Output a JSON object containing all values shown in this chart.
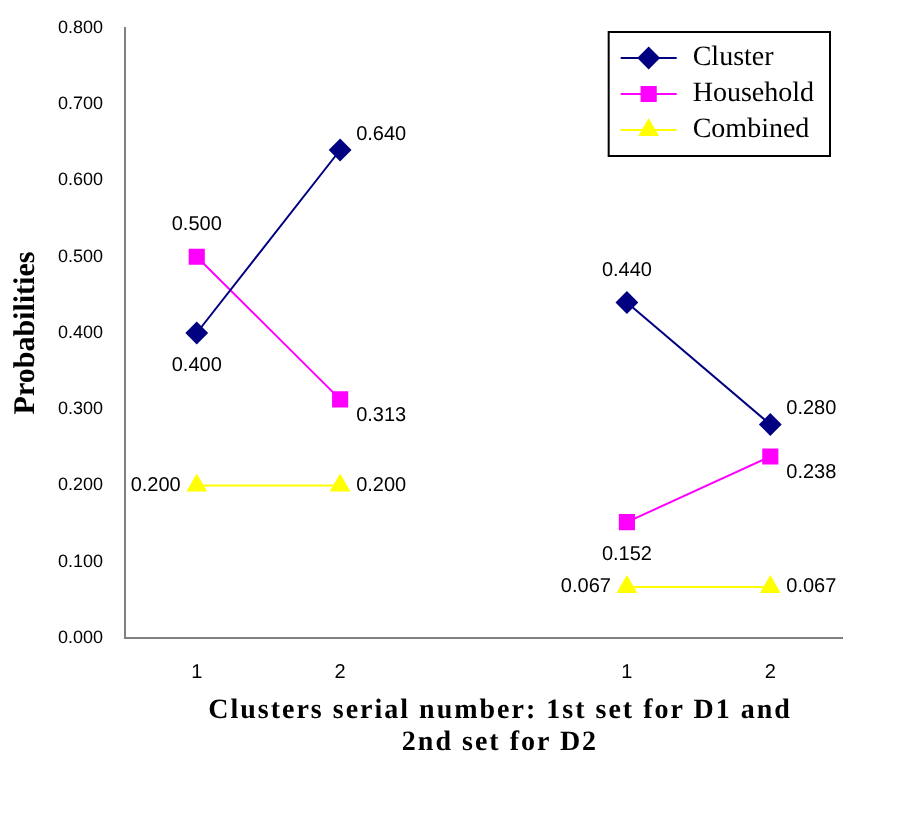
{
  "chart_data": {
    "type": "line",
    "ylabel": "Probabilities",
    "xlabel": "Clusters serial number: 1st set for D1 and 2nd set for D2",
    "categories": [
      "1",
      "2",
      null,
      "1",
      "2"
    ],
    "series": [
      {
        "name": "Cluster",
        "color": "#000080",
        "marker": "diamond",
        "values": [
          0.4,
          0.64,
          null,
          0.44,
          0.28
        ],
        "value_labels": [
          "0.400",
          "0.640",
          null,
          "0.440",
          "0.280"
        ]
      },
      {
        "name": "Household",
        "color": "#ff00ff",
        "marker": "square",
        "values": [
          0.5,
          0.313,
          null,
          0.152,
          0.238
        ],
        "value_labels": [
          "0.500",
          "0.313",
          null,
          "0.152",
          "0.238"
        ]
      },
      {
        "name": "Combined",
        "color": "#ffff00",
        "marker": "triangle",
        "values": [
          0.2,
          0.2,
          null,
          0.067,
          0.067
        ],
        "value_labels": [
          "0.200",
          "0.200",
          null,
          "0.067",
          "0.067"
        ]
      }
    ],
    "ylim": [
      0,
      0.8
    ],
    "yticks": [
      {
        "value": 0,
        "label": "0.000"
      },
      {
        "value": 0.1,
        "label": "0.100"
      },
      {
        "value": 0.2,
        "label": "0.200"
      },
      {
        "value": 0.3,
        "label": "0.300"
      },
      {
        "value": 0.4,
        "label": "0.400"
      },
      {
        "value": 0.5,
        "label": "0.500"
      },
      {
        "value": 0.6,
        "label": "0.600"
      },
      {
        "value": 0.7,
        "label": "0.700"
      },
      {
        "value": 0.8,
        "label": "0.800"
      }
    ],
    "grid": false,
    "legend": "top right",
    "line_style": "solid"
  }
}
